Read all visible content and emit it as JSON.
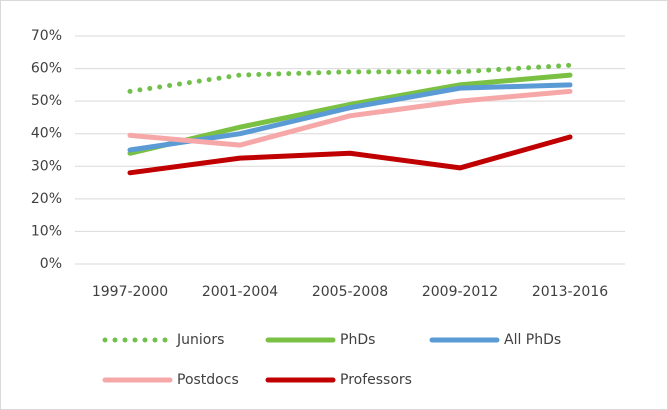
{
  "chart_data": {
    "type": "line",
    "categories": [
      "1997-2000",
      "2001-2004",
      "2005-2008",
      "2009-2012",
      "2013-2016"
    ],
    "series": [
      {
        "name": "Juniors",
        "color": "#70c04a",
        "style": "dotted",
        "values": [
          53,
          58,
          59,
          59,
          61
        ]
      },
      {
        "name": "PhDs",
        "color": "#7ac143",
        "style": "solid",
        "values": [
          34,
          42,
          49,
          55,
          58
        ]
      },
      {
        "name": "All PhDs",
        "color": "#5b9bd5",
        "style": "solid",
        "values": [
          35,
          40,
          48,
          54,
          55
        ]
      },
      {
        "name": "Postdocs",
        "color": "#f6a8a8",
        "style": "solid",
        "values": [
          39.5,
          36.5,
          45.5,
          50,
          53
        ]
      },
      {
        "name": "Professors",
        "color": "#c00000",
        "style": "solid",
        "values": [
          28,
          32.5,
          34,
          29.5,
          39
        ]
      }
    ],
    "ylim": [
      0,
      70
    ],
    "yticks": [
      {
        "value": 0,
        "label": "0%"
      },
      {
        "value": 10,
        "label": "10%"
      },
      {
        "value": 20,
        "label": "20%"
      },
      {
        "value": 30,
        "label": "30%"
      },
      {
        "value": 40,
        "label": "40%"
      },
      {
        "value": 50,
        "label": "50%"
      },
      {
        "value": 60,
        "label": "60%"
      },
      {
        "value": 70,
        "label": "70%"
      }
    ],
    "grid": true,
    "legend": "bottom"
  }
}
